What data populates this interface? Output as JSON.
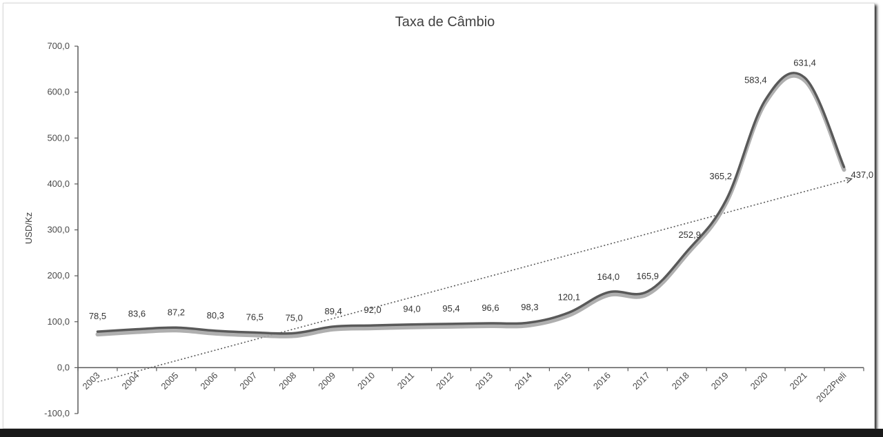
{
  "chart_data": {
    "type": "line",
    "title": "Taxa de Câmbio",
    "xlabel": "",
    "ylabel": "USD/Kz",
    "categories": [
      "2003",
      "2004",
      "2005",
      "2006",
      "2007",
      "2008",
      "2009",
      "2010",
      "2011",
      "2012",
      "2013",
      "2014",
      "2015",
      "2016",
      "2017",
      "2018",
      "2019",
      "2020",
      "2021",
      "2022Preli"
    ],
    "series": [
      {
        "name": "",
        "values": [
          78.5,
          83.6,
          87.2,
          80.3,
          76.5,
          75.0,
          89.4,
          92.0,
          94.0,
          95.4,
          96.6,
          98.3,
          120.1,
          164.0,
          165.9,
          252.9,
          365.2,
          583.4,
          631.4,
          437.0
        ],
        "labels": [
          "78,5",
          "83,6",
          "87,2",
          "80,3",
          "76,5",
          "75,0",
          "89,4",
          "92,0",
          "94,0",
          "95,4",
          "96,6",
          "98,3",
          "120,1",
          "164,0",
          "165,9",
          "252,9",
          "365,2",
          "583,4",
          "631,4",
          "437,0"
        ]
      }
    ],
    "trendline": {
      "type": "linear",
      "style": "dotted"
    },
    "ylim": [
      -100,
      700
    ],
    "yticks": [
      -100,
      0,
      100,
      200,
      300,
      400,
      500,
      600,
      700
    ],
    "ytick_labels": [
      "-100,0",
      "0,0",
      "100,0",
      "200,0",
      "300,0",
      "400,0",
      "500,0",
      "600,0",
      "700,0"
    ],
    "grid": false,
    "legend": "none",
    "colors": {
      "line": "#595959",
      "shadow": "#a6a6a6",
      "trend": "#595959"
    }
  }
}
